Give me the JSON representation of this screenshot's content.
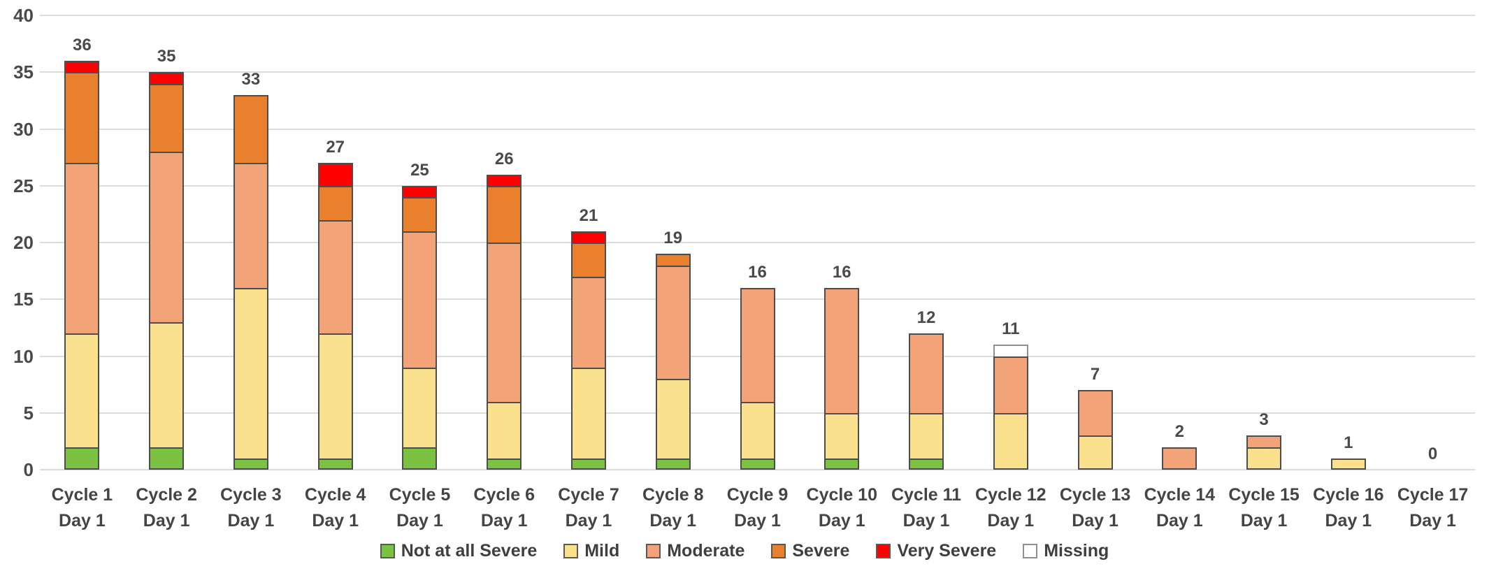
{
  "chart_data": {
    "type": "bar",
    "stacked": true,
    "title": "",
    "xlabel": "",
    "ylabel": "",
    "ylim": [
      0,
      40
    ],
    "yticks": [
      0,
      5,
      10,
      15,
      20,
      25,
      30,
      35,
      40
    ],
    "grid": true,
    "legend_position": "bottom",
    "categories": [
      {
        "label": "Cycle 1",
        "sublabel": "Day 1"
      },
      {
        "label": "Cycle 2",
        "sublabel": "Day 1"
      },
      {
        "label": "Cycle 3",
        "sublabel": "Day 1"
      },
      {
        "label": "Cycle 4",
        "sublabel": "Day 1"
      },
      {
        "label": "Cycle 5",
        "sublabel": "Day 1"
      },
      {
        "label": "Cycle 6",
        "sublabel": "Day 1"
      },
      {
        "label": "Cycle 7",
        "sublabel": "Day 1"
      },
      {
        "label": "Cycle 8",
        "sublabel": "Day 1"
      },
      {
        "label": "Cycle 9",
        "sublabel": "Day 1"
      },
      {
        "label": "Cycle 10",
        "sublabel": "Day 1"
      },
      {
        "label": "Cycle 11",
        "sublabel": "Day 1"
      },
      {
        "label": "Cycle 12",
        "sublabel": "Day 1"
      },
      {
        "label": "Cycle 13",
        "sublabel": "Day 1"
      },
      {
        "label": "Cycle 14",
        "sublabel": "Day 1"
      },
      {
        "label": "Cycle 15",
        "sublabel": "Day 1"
      },
      {
        "label": "Cycle 16",
        "sublabel": "Day 1"
      },
      {
        "label": "Cycle 17",
        "sublabel": "Day 1"
      }
    ],
    "series": [
      {
        "name": "Not at all Severe",
        "color": "#7cc242",
        "border": "#4d4d4d",
        "values": [
          2,
          2,
          1,
          1,
          2,
          1,
          1,
          1,
          1,
          1,
          1,
          0,
          0,
          0,
          0,
          0,
          0
        ]
      },
      {
        "name": "Mild",
        "color": "#fbe18d",
        "border": "#4d4d4d",
        "values": [
          10,
          11,
          15,
          11,
          7,
          5,
          8,
          7,
          5,
          4,
          4,
          5,
          3,
          0,
          2,
          1,
          0
        ]
      },
      {
        "name": "Moderate",
        "color": "#f2a377",
        "border": "#4d4d4d",
        "values": [
          15,
          15,
          11,
          10,
          12,
          14,
          8,
          10,
          10,
          11,
          7,
          5,
          4,
          2,
          1,
          0,
          0
        ]
      },
      {
        "name": "Severe",
        "color": "#e9802e",
        "border": "#4d4d4d",
        "values": [
          8,
          6,
          6,
          3,
          3,
          5,
          3,
          1,
          0,
          0,
          0,
          0,
          0,
          0,
          0,
          0,
          0
        ]
      },
      {
        "name": "Very Severe",
        "color": "#ff0000",
        "border": "#4d4d4d",
        "values": [
          1,
          1,
          0,
          2,
          1,
          1,
          1,
          0,
          0,
          0,
          0,
          0,
          0,
          0,
          0,
          0,
          0
        ]
      },
      {
        "name": "Missing",
        "color": "#ffffff",
        "border": "#909090",
        "values": [
          0,
          0,
          0,
          0,
          0,
          0,
          0,
          0,
          0,
          0,
          0,
          1,
          0,
          0,
          0,
          0,
          0
        ]
      }
    ],
    "totals": [
      36,
      35,
      33,
      27,
      25,
      26,
      21,
      19,
      16,
      16,
      12,
      11,
      7,
      2,
      3,
      1,
      0
    ]
  }
}
